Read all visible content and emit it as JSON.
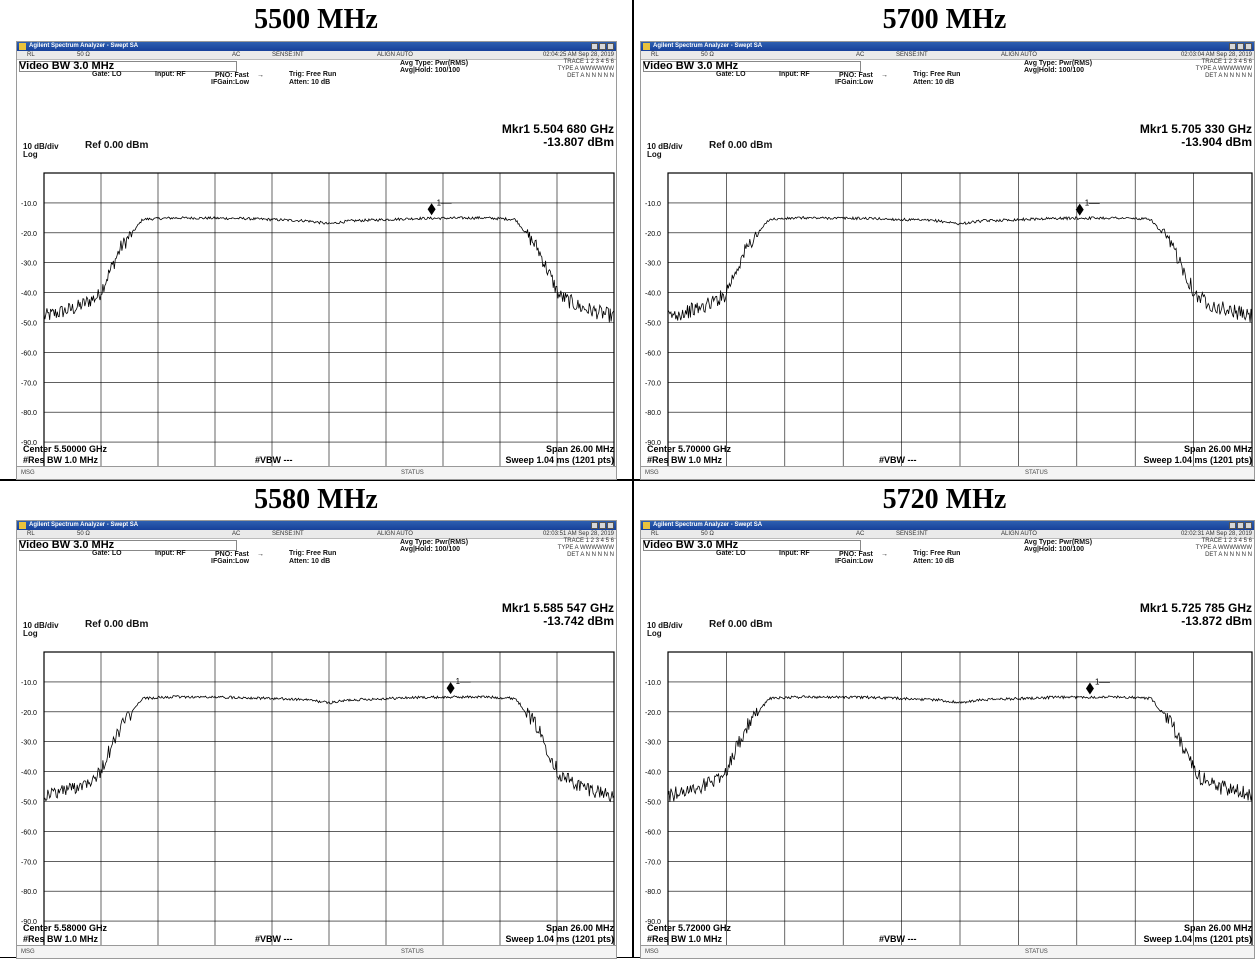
{
  "panels": [
    {
      "heading": "5500 MHz",
      "window_title": "Agilent Spectrum Analyzer - Swept SA",
      "status": {
        "rl": "RL",
        "imp": "50 Ω",
        "ac": "AC",
        "sense": "SENSE:INT",
        "align": "ALIGN AUTO",
        "time": "02:04:25 AM Sep 28, 2019"
      },
      "video_bw": "Video BW  3.0 MHz",
      "gate": "Gate: LO",
      "input": "Input: RF",
      "pno": "PNO: Fast",
      "ifgain": "IFGain:Low",
      "trig": "Trig: Free Run",
      "atten": "Atten: 10 dB",
      "avg_type": "Avg Type: Pwr(RMS)",
      "avg_hold": "Avg|Hold: 100/100",
      "trace_info": [
        "TRACE 1 2 3 4 5 6",
        "TYPE A WWWWWW",
        "DET A N N N N N"
      ],
      "marker_freq": "Mkr1 5.504 680 GHz",
      "marker_level": "-13.807 dBm",
      "scale": "10 dB/div",
      "ref": "Ref 0.00 dBm",
      "log": "Log",
      "center": "Center 5.50000 GHz",
      "res_bw": "#Res BW 1.0 MHz",
      "vbw": "#VBW ---",
      "span": "Span 26.00 MHz",
      "sweep": "Sweep  1.04 ms (1201 pts)",
      "msg": "MSG",
      "status_lbl": "STATUS"
    },
    {
      "heading": "5700 MHz",
      "window_title": "Agilent Spectrum Analyzer - Swept SA",
      "status": {
        "rl": "RL",
        "imp": "50 Ω",
        "ac": "AC",
        "sense": "SENSE:INT",
        "align": "ALIGN AUTO",
        "time": "02:03:04 AM Sep 28, 2019"
      },
      "video_bw": "Video BW  3.0 MHz",
      "gate": "Gate: LO",
      "input": "Input: RF",
      "pno": "PNO: Fast",
      "ifgain": "IFGain:Low",
      "trig": "Trig: Free Run",
      "atten": "Atten: 10 dB",
      "avg_type": "Avg Type: Pwr(RMS)",
      "avg_hold": "Avg|Hold: 100/100",
      "trace_info": [
        "TRACE 1 2 3 4 5 6",
        "TYPE A WWWWWW",
        "DET A N N N N N"
      ],
      "marker_freq": "Mkr1 5.705 330 GHz",
      "marker_level": "-13.904 dBm",
      "scale": "10 dB/div",
      "ref": "Ref 0.00 dBm",
      "log": "Log",
      "center": "Center 5.70000 GHz",
      "res_bw": "#Res BW 1.0 MHz",
      "vbw": "#VBW ---",
      "span": "Span 26.00 MHz",
      "sweep": "Sweep  1.04 ms (1201 pts)",
      "msg": "MSG",
      "status_lbl": "STATUS"
    },
    {
      "heading": "5580 MHz",
      "window_title": "Agilent Spectrum Analyzer - Swept SA",
      "status": {
        "rl": "RL",
        "imp": "50 Ω",
        "ac": "AC",
        "sense": "SENSE:INT",
        "align": "ALIGN AUTO",
        "time": "02:03:51 AM Sep 28, 2019"
      },
      "video_bw": "Video BW  3.0 MHz",
      "gate": "Gate: LO",
      "input": "Input: RF",
      "pno": "PNO: Fast",
      "ifgain": "IFGain:Low",
      "trig": "Trig: Free Run",
      "atten": "Atten: 10 dB",
      "avg_type": "Avg Type: Pwr(RMS)",
      "avg_hold": "Avg|Hold: 100/100",
      "trace_info": [
        "TRACE 1 2 3 4 5 6",
        "TYPE A WWWWWW",
        "DET A N N N N N"
      ],
      "marker_freq": "Mkr1 5.585 547 GHz",
      "marker_level": "-13.742 dBm",
      "scale": "10 dB/div",
      "ref": "Ref 0.00 dBm",
      "log": "Log",
      "center": "Center 5.58000 GHz",
      "res_bw": "#Res BW 1.0 MHz",
      "vbw": "#VBW ---",
      "span": "Span 26.00 MHz",
      "sweep": "Sweep  1.04 ms (1201 pts)",
      "msg": "MSG",
      "status_lbl": "STATUS"
    },
    {
      "heading": "5720 MHz",
      "window_title": "Agilent Spectrum Analyzer - Swept SA",
      "status": {
        "rl": "RL",
        "imp": "50 Ω",
        "ac": "AC",
        "sense": "SENSE:INT",
        "align": "ALIGN AUTO",
        "time": "02:02:31 AM Sep 28, 2019"
      },
      "video_bw": "Video BW  3.0 MHz",
      "gate": "Gate: LO",
      "input": "Input: RF",
      "pno": "PNO: Fast",
      "ifgain": "IFGain:Low",
      "trig": "Trig: Free Run",
      "atten": "Atten: 10 dB",
      "avg_type": "Avg Type: Pwr(RMS)",
      "avg_hold": "Avg|Hold: 100/100",
      "trace_info": [
        "TRACE 1 2 3 4 5 6",
        "TYPE A WWWWWW",
        "DET A N N N N N"
      ],
      "marker_freq": "Mkr1 5.725 785 GHz",
      "marker_level": "-13.872 dBm",
      "scale": "10 dB/div",
      "ref": "Ref 0.00 dBm",
      "log": "Log",
      "center": "Center 5.72000 GHz",
      "res_bw": "#Res BW 1.0 MHz",
      "vbw": "#VBW ---",
      "span": "Span 26.00 MHz",
      "sweep": "Sweep  1.04 ms (1201 pts)",
      "msg": "MSG",
      "status_lbl": "STATUS"
    }
  ],
  "chart_data": [
    {
      "type": "line",
      "center_ghz": 5.5,
      "span_mhz": 26,
      "ylim": [
        -100,
        0
      ],
      "y_ticks": [
        -10,
        -20,
        -30,
        -40,
        -50,
        -60,
        -70,
        -80,
        -90
      ],
      "series": [
        {
          "x_mhz_offset": [
            -13,
            -11.5,
            -10.5,
            -9.5,
            -8.5,
            -7,
            -4,
            -1,
            0,
            1,
            4,
            7,
            8.5,
            9.5,
            10.5,
            11.5,
            13
          ],
          "y_dbm": [
            -48,
            -45,
            -41,
            -25,
            -15.5,
            -15,
            -15.2,
            -16,
            -17,
            -16,
            -15.2,
            -15,
            -15.5,
            -25,
            -41,
            -45,
            -48
          ]
        }
      ],
      "marker": {
        "label": "1",
        "x_mhz_offset": 4.68,
        "y_dbm": -13.807
      }
    },
    {
      "type": "line",
      "center_ghz": 5.7,
      "span_mhz": 26,
      "ylim": [
        -100,
        0
      ],
      "y_ticks": [
        -10,
        -20,
        -30,
        -40,
        -50,
        -60,
        -70,
        -80,
        -90
      ],
      "series": [
        {
          "x_mhz_offset": [
            -13,
            -11.5,
            -10.5,
            -9.5,
            -8.5,
            -7,
            -4,
            -1,
            0,
            1,
            4,
            7,
            8.5,
            9.5,
            10.5,
            11.5,
            13
          ],
          "y_dbm": [
            -48,
            -45,
            -41,
            -25,
            -15.5,
            -15,
            -15.2,
            -16,
            -17,
            -16,
            -15.2,
            -15,
            -15.5,
            -25,
            -41,
            -45,
            -48
          ]
        }
      ],
      "marker": {
        "label": "1",
        "x_mhz_offset": 5.33,
        "y_dbm": -13.904
      }
    },
    {
      "type": "line",
      "center_ghz": 5.58,
      "span_mhz": 26,
      "ylim": [
        -100,
        0
      ],
      "y_ticks": [
        -10,
        -20,
        -30,
        -40,
        -50,
        -60,
        -70,
        -80,
        -90
      ],
      "series": [
        {
          "x_mhz_offset": [
            -13,
            -11.5,
            -10.5,
            -9.5,
            -8.5,
            -7,
            -4,
            -1,
            0,
            1,
            4,
            7,
            8.5,
            9.5,
            10.5,
            11.5,
            13
          ],
          "y_dbm": [
            -48,
            -45,
            -41,
            -25,
            -15.5,
            -15,
            -15.2,
            -16,
            -17,
            -16,
            -15.2,
            -15,
            -15.5,
            -25,
            -41,
            -45,
            -48
          ]
        }
      ],
      "marker": {
        "label": "1",
        "x_mhz_offset": 5.547,
        "y_dbm": -13.742
      }
    },
    {
      "type": "line",
      "center_ghz": 5.72,
      "span_mhz": 26,
      "ylim": [
        -100,
        0
      ],
      "y_ticks": [
        -10,
        -20,
        -30,
        -40,
        -50,
        -60,
        -70,
        -80,
        -90
      ],
      "series": [
        {
          "x_mhz_offset": [
            -13,
            -11.5,
            -10.5,
            -9.5,
            -8.5,
            -7,
            -4,
            -1,
            0,
            1,
            4,
            7,
            8.5,
            9.5,
            10.5,
            11.5,
            13
          ],
          "y_dbm": [
            -48,
            -45,
            -41,
            -25,
            -15.5,
            -15,
            -15.2,
            -16,
            -17,
            -16,
            -15.2,
            -15,
            -15.5,
            -25,
            -41,
            -45,
            -48
          ]
        }
      ],
      "marker": {
        "label": "1",
        "x_mhz_offset": 5.785,
        "y_dbm": -13.872
      }
    }
  ]
}
